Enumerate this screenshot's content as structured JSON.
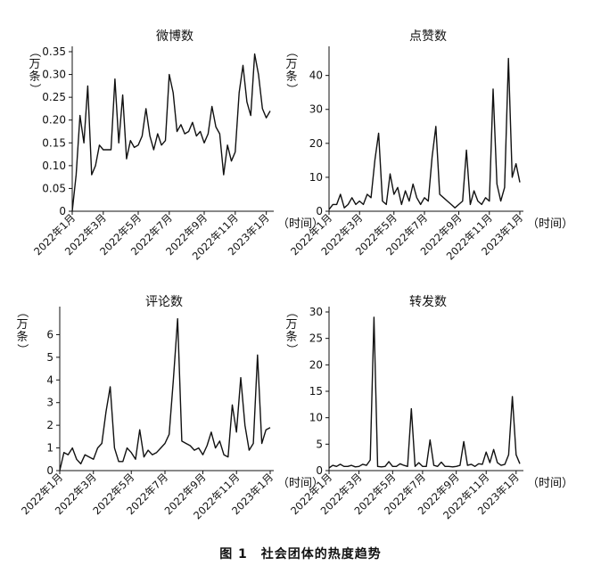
{
  "caption": "图 1　社会团体的热度趋势",
  "chart_data": [
    {
      "type": "line",
      "title": "微博数",
      "ylabel": "（万条）",
      "xlabel": "（时间）",
      "x_tick_labels": [
        "2022年1月",
        "2022年3月",
        "2022年5月",
        "2022年7月",
        "2022年9月",
        "2022年11月",
        "2023年1月"
      ],
      "x_tick_index": [
        0,
        8,
        17,
        25,
        34,
        42,
        50
      ],
      "y_ticks": [
        "0",
        "0.05",
        "0.10",
        "0.15",
        "0.20",
        "0.25",
        "0.30",
        "0.35"
      ],
      "ylim": [
        0,
        0.35
      ],
      "values": [
        0.0,
        0.08,
        0.21,
        0.15,
        0.275,
        0.08,
        0.1,
        0.145,
        0.135,
        0.135,
        0.135,
        0.29,
        0.15,
        0.255,
        0.115,
        0.155,
        0.14,
        0.145,
        0.165,
        0.225,
        0.165,
        0.135,
        0.17,
        0.145,
        0.155,
        0.3,
        0.26,
        0.175,
        0.19,
        0.17,
        0.175,
        0.195,
        0.165,
        0.175,
        0.15,
        0.17,
        0.23,
        0.185,
        0.17,
        0.08,
        0.145,
        0.11,
        0.13,
        0.26,
        0.32,
        0.24,
        0.21,
        0.345,
        0.3,
        0.225,
        0.205,
        0.22
      ]
    },
    {
      "type": "line",
      "title": "点赞数",
      "ylabel": "（万条）",
      "xlabel": "（时间）",
      "x_tick_labels": [
        "2022年1月",
        "2022年3月",
        "2022年5月",
        "2022年7月",
        "2022年9月",
        "2022年11月",
        "2023年1月"
      ],
      "x_tick_index": [
        0,
        8,
        17,
        25,
        34,
        42,
        50
      ],
      "y_ticks": [
        "0",
        "10",
        "20",
        "30",
        "40"
      ],
      "ylim": [
        0,
        47
      ],
      "values": [
        0.5,
        2,
        2,
        5,
        1,
        2,
        4,
        2,
        3,
        2,
        5,
        4,
        15,
        23,
        3,
        2,
        11,
        5,
        7,
        2,
        6,
        3,
        8,
        4,
        2,
        4,
        3,
        16,
        25,
        5,
        4,
        3,
        2,
        1,
        2,
        3,
        18,
        2,
        6,
        3,
        2,
        4,
        3,
        36,
        8,
        3,
        7,
        45,
        10,
        14,
        8.5
      ]
    },
    {
      "type": "line",
      "title": "评论数",
      "ylabel": "（万条）",
      "xlabel": "（时间）",
      "x_tick_labels": [
        "2022年1月",
        "2022年3月",
        "2022年5月",
        "2022年7月",
        "2022年9月",
        "2022年11月",
        "2023年1月"
      ],
      "x_tick_index": [
        0,
        8,
        17,
        25,
        34,
        42,
        50
      ],
      "y_ticks": [
        "0",
        "1",
        "2",
        "3",
        "4",
        "5",
        "6"
      ],
      "ylim": [
        0,
        7
      ],
      "values": [
        0,
        0.8,
        0.7,
        1.0,
        0.5,
        0.3,
        0.7,
        0.6,
        0.5,
        1.0,
        1.2,
        2.6,
        3.7,
        1.0,
        0.4,
        0.4,
        1.0,
        0.8,
        0.5,
        1.8,
        0.6,
        0.9,
        0.7,
        0.8,
        1.0,
        1.2,
        1.6,
        4.0,
        6.7,
        1.3,
        1.2,
        1.1,
        0.9,
        1.0,
        0.7,
        1.1,
        1.7,
        1.0,
        1.3,
        0.7,
        0.6,
        2.9,
        1.7,
        4.1,
        2.0,
        0.9,
        1.2,
        5.1,
        1.2,
        1.8,
        1.9
      ]
    },
    {
      "type": "line",
      "title": "转发数",
      "ylabel": "（万条）",
      "xlabel": "（时间）",
      "x_tick_labels": [
        "2022年1月",
        "2022年3月",
        "2022年5月",
        "2022年7月",
        "2022年9月",
        "2022年11月",
        "2023年1月"
      ],
      "x_tick_index": [
        0,
        8,
        17,
        25,
        34,
        42,
        50
      ],
      "y_ticks": [
        "0",
        "5",
        "10",
        "15",
        "20",
        "25",
        "30"
      ],
      "ylim": [
        0,
        30
      ],
      "values": [
        0.5,
        1,
        0.8,
        1.2,
        0.8,
        0.8,
        1,
        0.7,
        0.8,
        1.2,
        1,
        2,
        29,
        0.8,
        0.7,
        0.8,
        1.7,
        0.8,
        0.8,
        1.3,
        1,
        0.8,
        11.7,
        0.8,
        1.5,
        0.8,
        0.8,
        5.8,
        1,
        0.8,
        1.6,
        0.8,
        0.8,
        0.7,
        0.8,
        1,
        5.5,
        1,
        1.2,
        0.8,
        1.3,
        1.2,
        3.5,
        1.5,
        4,
        1.5,
        1,
        1.2,
        3,
        14,
        3,
        1.3
      ]
    }
  ]
}
